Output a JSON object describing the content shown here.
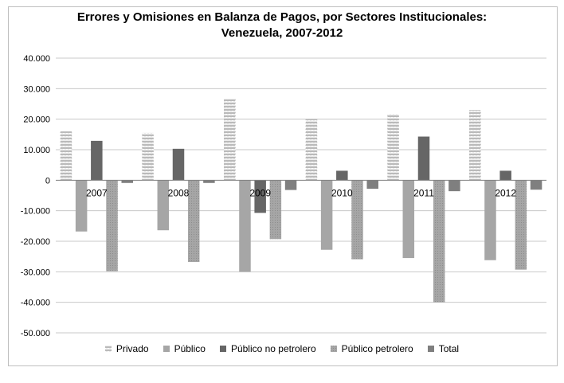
{
  "chart_data": {
    "type": "bar",
    "title": [
      "Errores y Omisiones en Balanza de Pagos, por Sectores Institucionales:",
      "Venezuela, 2007-2012"
    ],
    "categories": [
      "2007",
      "2008",
      "2009",
      "2010",
      "2011",
      "2012"
    ],
    "ylim": [
      -50000,
      40000
    ],
    "yticks": [
      40000,
      30000,
      20000,
      10000,
      0,
      -10000,
      -20000,
      -30000,
      -40000,
      -50000
    ],
    "ytick_labels": [
      "40.000",
      "30.000",
      "20.000",
      "10.000",
      "0",
      "-10.000",
      "-20.000",
      "-30.000",
      "-40.000",
      "-50.000"
    ],
    "grid": true,
    "legend_position": "bottom",
    "series": [
      {
        "name": "Privado",
        "values": [
          16000,
          15500,
          26700,
          20000,
          21700,
          23000
        ],
        "color": "#d9d9d9",
        "pattern": "zigzag"
      },
      {
        "name": "Público",
        "values": [
          -16800,
          -16400,
          -30000,
          -22800,
          -25500,
          -26200
        ],
        "color": "#a6a6a6",
        "pattern": "solid"
      },
      {
        "name": "Público no petrolero",
        "values": [
          12900,
          10300,
          -10700,
          3100,
          14300,
          3100
        ],
        "color": "#666666",
        "pattern": "solid"
      },
      {
        "name": "Público petrolero",
        "values": [
          -29800,
          -26800,
          -19300,
          -25900,
          -40000,
          -29300
        ],
        "color": "#a6a6a6",
        "pattern": "dots"
      },
      {
        "name": "Total",
        "values": [
          -900,
          -900,
          -3200,
          -2800,
          -3600,
          -3100
        ],
        "color": "#7f7f7f",
        "pattern": "solid"
      }
    ]
  }
}
